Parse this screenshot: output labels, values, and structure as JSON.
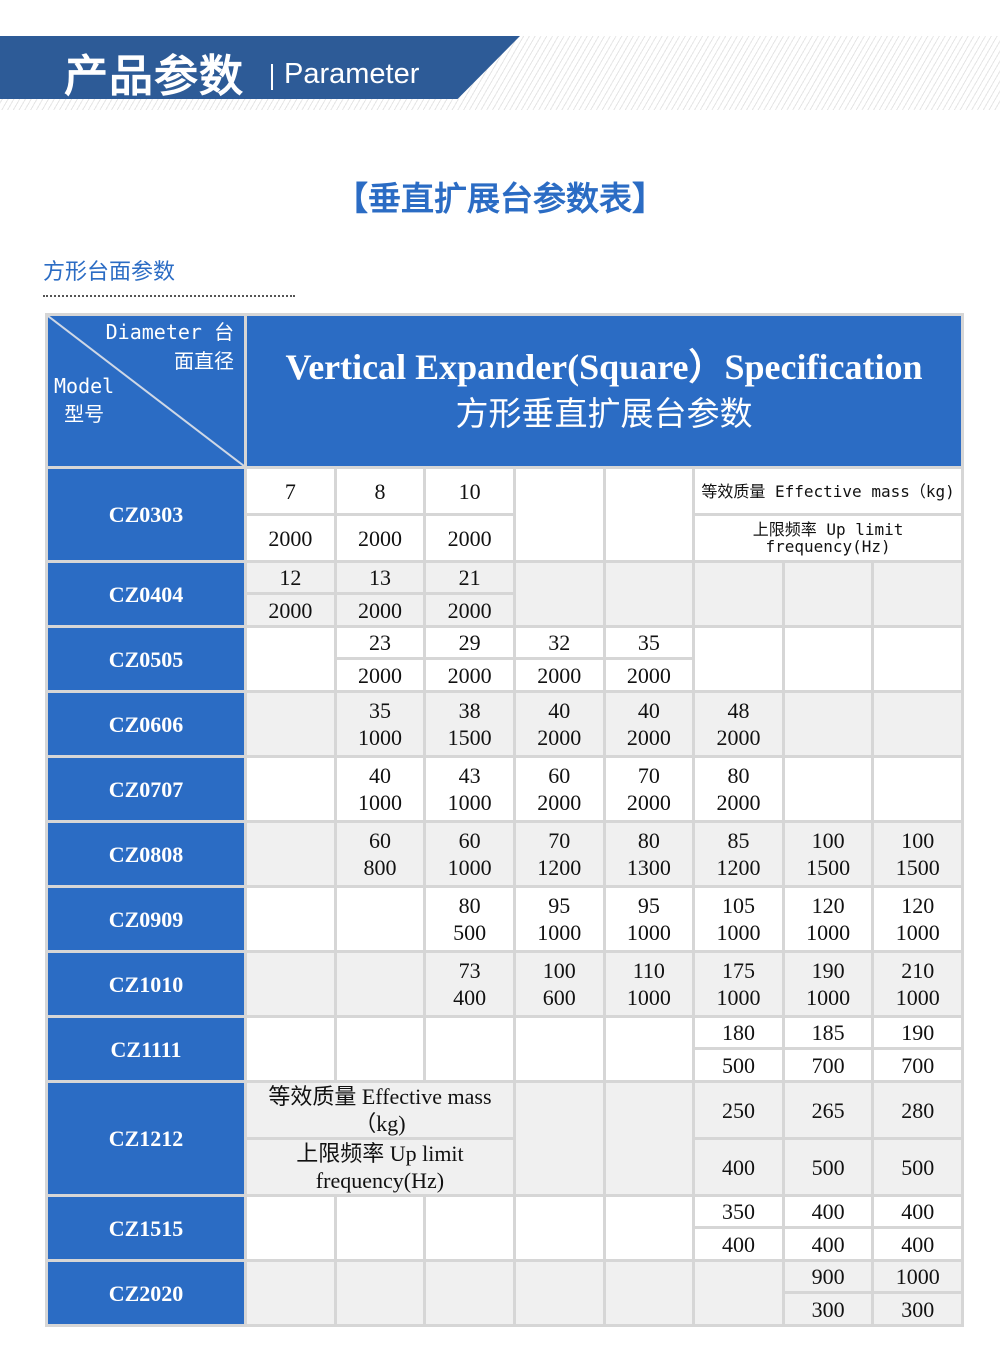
{
  "banner": {
    "title_cn": "产品参数",
    "title_en": "Parameter",
    "color": "#2d5b97"
  },
  "main_title": "【垂直扩展台参数表】",
  "sub_title": "方形台面参数",
  "accent_color": "#2b6cc4",
  "table": {
    "corner": {
      "diameter": "Diameter 台",
      "diameter_cn": "面直径",
      "model": "Model",
      "model_cn": "型号"
    },
    "header_en": "Vertical Expander(Square）Specification",
    "header_cn": "方形垂直扩展台参数",
    "rows": [
      {
        "model": "CZ0303",
        "layout": "split",
        "shade": "w",
        "h": [
          44,
          44
        ],
        "cells": [
          {
            "top": "7",
            "bottom": "2000"
          },
          {
            "top": "8",
            "bottom": "2000"
          },
          {
            "top": "10",
            "bottom": "2000"
          },
          {},
          {},
          {
            "top": "等效质量 Effective mass（kg)",
            "bottom": "上限频率 Up limit frequency(Hz)",
            "colspan": 3,
            "label": "mono"
          }
        ]
      },
      {
        "model": "CZ0404",
        "layout": "split",
        "shade": "g",
        "h": [
          29,
          30
        ],
        "cells": [
          {
            "top": "12",
            "bottom": "2000"
          },
          {
            "top": "13",
            "bottom": "2000"
          },
          {
            "top": "21",
            "bottom": "2000"
          },
          {},
          {},
          {},
          {},
          {}
        ]
      },
      {
        "model": "CZ0505",
        "layout": "split",
        "shade": "w",
        "h": [
          29,
          30
        ],
        "cells": [
          {},
          {
            "top": "23",
            "bottom": "2000"
          },
          {
            "top": "29",
            "bottom": "2000"
          },
          {
            "top": "32",
            "bottom": "2000"
          },
          {
            "top": "35",
            "bottom": "2000"
          },
          {},
          {},
          {}
        ]
      },
      {
        "model": "CZ0606",
        "layout": "single",
        "shade": "g",
        "h": [
          62
        ],
        "cells": [
          {},
          {
            "top": "35",
            "bottom": "1000"
          },
          {
            "top": "38",
            "bottom": "1500"
          },
          {
            "top": "40",
            "bottom": "2000"
          },
          {
            "top": "40",
            "bottom": "2000"
          },
          {
            "top": "48",
            "bottom": "2000"
          },
          {},
          {}
        ]
      },
      {
        "model": "CZ0707",
        "layout": "single",
        "shade": "w",
        "h": [
          62
        ],
        "cells": [
          {},
          {
            "top": "40",
            "bottom": "1000"
          },
          {
            "top": "43",
            "bottom": "1000"
          },
          {
            "top": "60",
            "bottom": "2000"
          },
          {
            "top": "70",
            "bottom": "2000"
          },
          {
            "top": "80",
            "bottom": "2000"
          },
          {},
          {}
        ]
      },
      {
        "model": "CZ0808",
        "layout": "single",
        "shade": "g",
        "h": [
          62
        ],
        "cells": [
          {},
          {
            "top": "60",
            "bottom": "800"
          },
          {
            "top": "60",
            "bottom": "1000"
          },
          {
            "top": "70",
            "bottom": "1200"
          },
          {
            "top": "80",
            "bottom": "1300"
          },
          {
            "top": "85",
            "bottom": "1200"
          },
          {
            "top": "100",
            "bottom": "1500"
          },
          {
            "top": "100",
            "bottom": "1500"
          }
        ]
      },
      {
        "model": "CZ0909",
        "layout": "single",
        "shade": "w",
        "h": [
          62
        ],
        "cells": [
          {},
          {},
          {
            "top": "80",
            "bottom": "500"
          },
          {
            "top": "95",
            "bottom": "1000"
          },
          {
            "top": "95",
            "bottom": "1000"
          },
          {
            "top": "105",
            "bottom": "1000"
          },
          {
            "top": "120",
            "bottom": "1000"
          },
          {
            "top": "120",
            "bottom": "1000"
          }
        ]
      },
      {
        "model": "CZ1010",
        "layout": "single",
        "shade": "g",
        "h": [
          62
        ],
        "cells": [
          {},
          {},
          {
            "top": "73",
            "bottom": "400"
          },
          {
            "top": "100",
            "bottom": "600"
          },
          {
            "top": "110",
            "bottom": "1000"
          },
          {
            "top": "175",
            "bottom": "1000"
          },
          {
            "top": "190",
            "bottom": "1000"
          },
          {
            "top": "210",
            "bottom": "1000"
          }
        ]
      },
      {
        "model": "CZ1111",
        "layout": "split",
        "shade": "w",
        "h": [
          29,
          30
        ],
        "cells": [
          {},
          {},
          {},
          {},
          {},
          {
            "top": "180",
            "bottom": "500"
          },
          {
            "top": "185",
            "bottom": "700"
          },
          {
            "top": "190",
            "bottom": "700"
          }
        ]
      },
      {
        "model": "CZ1212",
        "layout": "split",
        "shade": "g",
        "h": [
          54,
          54
        ],
        "cells": [
          {
            "top": "等效质量 Effective mass（kg)",
            "bottom": "上限频率 Up limit frequency(Hz)",
            "colspan": 3,
            "label": "serif"
          },
          {},
          {},
          {
            "top": "250",
            "bottom": "400"
          },
          {
            "top": "265",
            "bottom": "500"
          },
          {
            "top": "280",
            "bottom": "500"
          }
        ]
      },
      {
        "model": "CZ1515",
        "layout": "split",
        "shade": "w",
        "h": [
          29,
          30
        ],
        "cells": [
          {},
          {},
          {},
          {},
          {},
          {
            "top": "350",
            "bottom": "400"
          },
          {
            "top": "400",
            "bottom": "400"
          },
          {
            "top": "400",
            "bottom": "400"
          }
        ]
      },
      {
        "model": "CZ2020",
        "layout": "split",
        "shade": "g",
        "h": [
          29,
          30
        ],
        "cells": [
          {},
          {},
          {},
          {},
          {},
          {},
          {
            "top": "900",
            "bottom": "300"
          },
          {
            "top": "1000",
            "bottom": "300"
          }
        ]
      }
    ]
  }
}
